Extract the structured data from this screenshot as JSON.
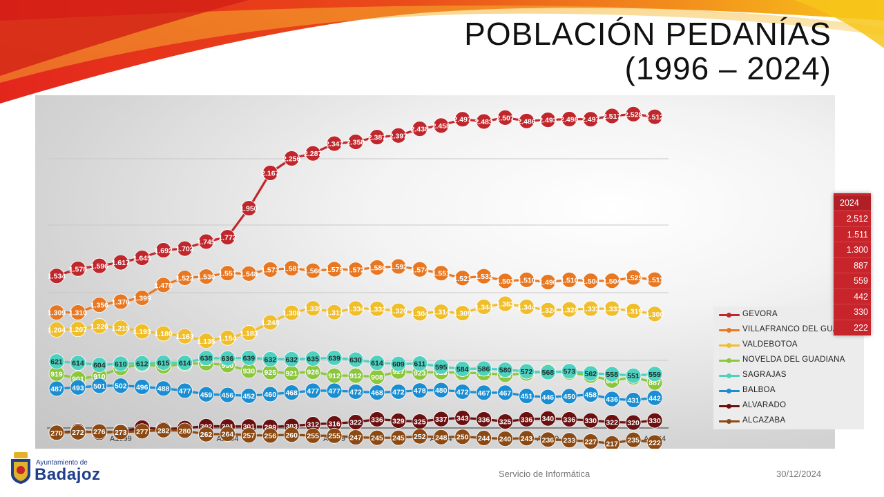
{
  "slide": {
    "title_line1": "POBLACIÓN PEDANÍAS",
    "title_line2": "(1996 – 2024)",
    "footer_center": "Servicio de Informática",
    "footer_date": "30/12/2024",
    "logo_line1": "Ayuntamiento de",
    "logo_line2": "Badajoz"
  },
  "colors": {
    "deco_red": "#e3261c",
    "deco_orange": "#f28a1c",
    "deco_yellow": "#f7c61a",
    "table_red": "#c8242c"
  },
  "chart_data": {
    "type": "line",
    "title": "",
    "xlabel": "",
    "ylabel": "",
    "x": [
      "A1996",
      "A1997",
      "A1998",
      "A1999",
      "A2000",
      "A2001",
      "A2002",
      "A2003",
      "A2004",
      "A2005",
      "A2006",
      "A2007",
      "A2008",
      "A2009",
      "A2010",
      "A2011",
      "A2012",
      "A2013",
      "A2014",
      "A2015",
      "A2016",
      "A2017",
      "A2018",
      "A2019",
      "A2020",
      "A2021",
      "A2022",
      "A2023",
      "A2024"
    ],
    "tick_labels": [
      {
        "index": 3,
        "label": "A1999"
      },
      {
        "index": 8,
        "label": "A2004"
      },
      {
        "index": 13,
        "label": "A2009"
      },
      {
        "index": 18,
        "label": "A2014"
      },
      {
        "index": 23,
        "label": "A2019"
      },
      {
        "index": 28,
        "label": "A2024"
      }
    ],
    "grid": true,
    "legend_position": "right",
    "series": [
      {
        "name": "GEVORA",
        "color": "#c0272d",
        "label_color": "#ffffff",
        "values": [
          1534,
          1578,
          1596,
          1617,
          1645,
          1692,
          1702,
          1745,
          1772,
          1950,
          2167,
          2256,
          2287,
          2347,
          2358,
          2387,
          2397,
          2438,
          2458,
          2497,
          2483,
          2507,
          2486,
          2493,
          2498,
          2497,
          2517,
          2528,
          2512
        ],
        "labels": [
          "1.534",
          "1.578",
          "1.596",
          "1.617",
          "1.645",
          "1.692",
          "1.702",
          "1.745",
          "1.772",
          "1.950",
          "2.167",
          "2.256",
          "2.287",
          "2.347",
          "2.358",
          "2.387",
          "2.397",
          "2.438",
          "2.458",
          "2.497",
          "2.483",
          "2.507",
          "2.486",
          "2.493",
          "2.498",
          "2.497",
          "2.517",
          "2.528",
          "2.512"
        ]
      },
      {
        "name": "VILLAFRANCO DEL GUADIANA",
        "color": "#e87722",
        "label_color": "#ffffff",
        "values": [
          1309,
          1310,
          1356,
          1376,
          1399,
          1478,
          1522,
          1530,
          1551,
          1548,
          1573,
          1581,
          1566,
          1575,
          1572,
          1586,
          1592,
          1574,
          1551,
          1521,
          1532,
          1503,
          1510,
          1496,
          1510,
          1504,
          1504,
          1525,
          1511
        ],
        "labels": [
          "1.309",
          "1.310",
          "1.356",
          "1.376",
          "1.399",
          "1.478",
          "1.522",
          "1.530",
          "1.551",
          "1.548",
          "1.573",
          "1.581",
          "1.566",
          "1.575",
          "1.572",
          "1.586",
          "1.592",
          "1.574",
          "1.551",
          "1.521",
          "1.532",
          "1.503",
          "1.510",
          "1.496",
          "1.510",
          "1.504",
          "1.504",
          "1.525",
          "1.511"
        ]
      },
      {
        "name": "VALDEBOTOA",
        "color": "#f0be2b",
        "label_color": "#ffffff",
        "values": [
          1204,
          1207,
          1226,
          1215,
          1193,
          1180,
          1163,
          1135,
          1154,
          1183,
          1248,
          1308,
          1335,
          1311,
          1334,
          1332,
          1320,
          1304,
          1314,
          1305,
          1344,
          1363,
          1344,
          1324,
          1328,
          1333,
          1333,
          1319,
          1300
        ],
        "labels": [
          "1.204",
          "1.207",
          "1.226",
          "1.215",
          "1.193",
          "1.180",
          "1.163",
          "1.135",
          "1.154",
          "1.183",
          "1.248",
          "1.308",
          "1.335",
          "1.311",
          "1.334",
          "1.332",
          "1.320",
          "1.304",
          "1.314",
          "1.305",
          "1.344",
          "1.363",
          "1.344",
          "1.324",
          "1.328",
          "1.333",
          "1.333",
          "1.319",
          "1.300"
        ]
      },
      {
        "name": "NOVELDA DEL GUADIANA",
        "color": "#8cc63f",
        "label_color": "#ffffff",
        "values": [
          919,
          901,
          910,
          940,
          953,
          946,
          955,
          957,
          950,
          930,
          925,
          921,
          926,
          912,
          912,
          908,
          927,
          923,
          925,
          922,
          921,
          915,
          920,
          928,
          923,
          912,
          894,
          906,
          887
        ],
        "labels": [
          "919",
          "901",
          "910",
          "940",
          "953",
          "946",
          "955",
          "957",
          "950",
          "930",
          "925",
          "921",
          "926",
          "912",
          "912",
          "908",
          "927",
          "923",
          "925",
          "922",
          "921",
          "915",
          "920",
          "928",
          "923",
          "912",
          "894",
          "906",
          "887"
        ]
      },
      {
        "name": "SAGRAJAS",
        "color": "#4fd1c0",
        "label_color": "#1d2d2b",
        "values": [
          621,
          614,
          604,
          610,
          612,
          615,
          614,
          638,
          636,
          639,
          632,
          632,
          635,
          639,
          630,
          614,
          609,
          611,
          595,
          584,
          586,
          580,
          572,
          568,
          573,
          562,
          558,
          551,
          559
        ],
        "labels": [
          "621",
          "614",
          "604",
          "610",
          "612",
          "615",
          "614",
          "638",
          "636",
          "639",
          "632",
          "632",
          "635",
          "639",
          "630",
          "614",
          "609",
          "611",
          "595",
          "584",
          "586",
          "580",
          "572",
          "568",
          "573",
          "562",
          "558",
          "551",
          "559"
        ]
      },
      {
        "name": "BALBOA",
        "color": "#1a8ed1",
        "label_color": "#ffffff",
        "values": [
          487,
          493,
          501,
          502,
          496,
          488,
          477,
          459,
          456,
          452,
          460,
          468,
          477,
          477,
          472,
          468,
          472,
          478,
          480,
          472,
          467,
          467,
          451,
          446,
          450,
          458,
          436,
          431,
          442
        ],
        "labels": [
          "487",
          "493",
          "501",
          "502",
          "496",
          "488",
          "477",
          "459",
          "456",
          "452",
          "460",
          "468",
          "477",
          "477",
          "472",
          "468",
          "472",
          "478",
          "480",
          "472",
          "467",
          "467",
          "451",
          "446",
          "450",
          "458",
          "436",
          "431",
          "442"
        ]
      },
      {
        "name": "ALVARADO",
        "color": "#6b1010",
        "label_color": "#ffffff",
        "values": [
          270,
          278,
          270,
          275,
          295,
          287,
          293,
          302,
          301,
          301,
          299,
          303,
          312,
          316,
          322,
          336,
          329,
          325,
          337,
          343,
          336,
          325,
          336,
          340,
          336,
          330,
          322,
          320,
          330
        ],
        "labels": [
          "270",
          "278",
          "270",
          "275",
          "295",
          "287",
          "293",
          "302",
          "301",
          "301",
          "299",
          "303",
          "312",
          "316",
          "322",
          "336",
          "329",
          "325",
          "337",
          "343",
          "336",
          "325",
          "336",
          "340",
          "336",
          "330",
          "322",
          "320",
          "330"
        ]
      },
      {
        "name": "ALCAZABA",
        "color": "#8b4a14",
        "label_color": "#ffffff",
        "values": [
          270,
          272,
          276,
          273,
          277,
          282,
          280,
          262,
          264,
          257,
          256,
          260,
          255,
          255,
          247,
          245,
          245,
          252,
          248,
          250,
          244,
          240,
          243,
          236,
          233,
          227,
          217,
          235,
          222
        ],
        "labels": [
          "270",
          "272",
          "276",
          "273",
          "277",
          "282",
          "280",
          "262",
          "264",
          "257",
          "256",
          "260",
          "255",
          "255",
          "247",
          "245",
          "245",
          "252",
          "248",
          "250",
          "244",
          "240",
          "243",
          "236",
          "233",
          "227",
          "217",
          "235",
          "222"
        ]
      }
    ],
    "side_table": {
      "header": "2024",
      "values": [
        "2.512",
        "1.511",
        "1.300",
        "887",
        "559",
        "442",
        "330",
        "222"
      ]
    }
  }
}
